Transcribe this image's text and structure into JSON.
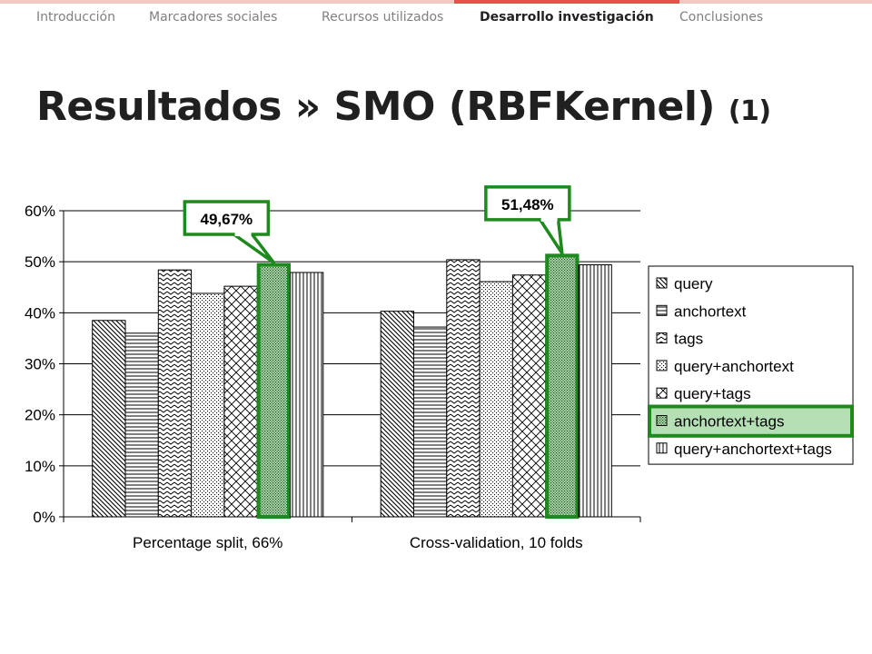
{
  "nav": {
    "tabs": [
      {
        "label": "Introducción",
        "active": false
      },
      {
        "label": "Marcadores sociales",
        "active": false
      },
      {
        "label": "Recursos utilizados",
        "active": false
      },
      {
        "label": "Desarrollo investigación",
        "active": true
      },
      {
        "label": "Conclusiones",
        "active": false
      }
    ]
  },
  "slide": {
    "title_main": "Resultados » SMO (RBFKernel) ",
    "title_sub": "(1)"
  },
  "colors": {
    "highlight": "#1e8a1e",
    "highlight_fill": "#b5dfb5",
    "nav_accent": "#e8514a"
  },
  "chart_data": {
    "type": "bar",
    "categories": [
      "Percentage split, 66%",
      "Cross-validation, 10 folds"
    ],
    "series": [
      {
        "name": "query",
        "values": [
          38.5,
          40.3
        ],
        "pattern": "diag-down"
      },
      {
        "name": "anchortext",
        "values": [
          36.0,
          37.2
        ],
        "pattern": "horizontal"
      },
      {
        "name": "tags",
        "values": [
          48.4,
          50.4
        ],
        "pattern": "zigzag"
      },
      {
        "name": "query+anchortext",
        "values": [
          43.8,
          46.1
        ],
        "pattern": "dots"
      },
      {
        "name": "query+tags",
        "values": [
          45.2,
          47.4
        ],
        "pattern": "diamond"
      },
      {
        "name": "anchortext+tags",
        "values": [
          49.67,
          51.48
        ],
        "pattern": "dots-dense",
        "highlight": true
      },
      {
        "name": "query+anchortext+tags",
        "values": [
          47.9,
          49.4
        ],
        "pattern": "vertical"
      }
    ],
    "yticks": [
      "0%",
      "10%",
      "20%",
      "30%",
      "40%",
      "50%",
      "60%"
    ],
    "ylim": [
      0,
      60
    ],
    "grid": true,
    "legend_position": "right",
    "callouts": [
      "49,67%",
      "51,48%"
    ]
  }
}
